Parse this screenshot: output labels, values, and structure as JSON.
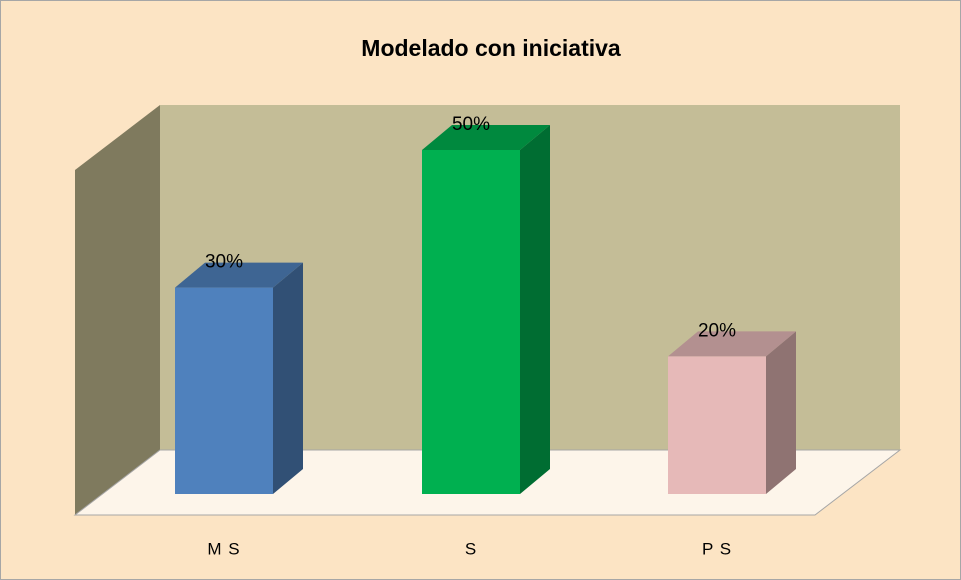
{
  "chart_data": {
    "type": "bar3d",
    "title": "Modelado con iniciativa",
    "categories": [
      "M S",
      "S",
      "P S"
    ],
    "values": [
      30,
      50,
      20
    ],
    "value_labels": [
      "30%",
      "50%",
      "20%"
    ],
    "colors": [
      "#4f81bd",
      "#00b050",
      "#e6b9b8"
    ],
    "ylim": [
      0,
      50
    ]
  }
}
